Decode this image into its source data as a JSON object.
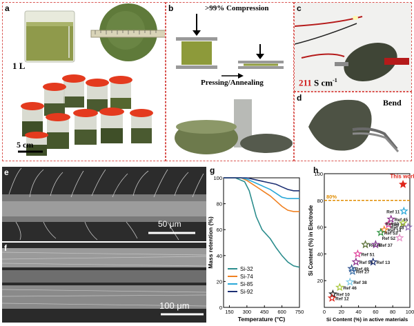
{
  "panels": {
    "a": {
      "label": "a",
      "volume": "1 L",
      "scale": "5 cm"
    },
    "b": {
      "label": "b",
      "title": ">99% Compression",
      "caption": "Pressing/Annealing"
    },
    "c": {
      "label": "c",
      "value": "211",
      "unit": "S cm",
      "exp": "-1"
    },
    "d": {
      "label": "d",
      "title": "Bend"
    },
    "e": {
      "label": "e",
      "scale": "50 μm"
    },
    "f": {
      "label": "f",
      "scale": "100 μm"
    },
    "g": {
      "label": "g"
    },
    "h": {
      "label": "h"
    }
  },
  "chart_data": [
    {
      "type": "line",
      "panel": "g",
      "xlabel": "Temperature (°C)",
      "ylabel": "Mass retention (%)",
      "xlim": [
        100,
        750
      ],
      "ylim": [
        0,
        100
      ],
      "xticks": [
        150,
        300,
        450,
        600,
        750
      ],
      "yticks": [
        0,
        20,
        40,
        60,
        80,
        100
      ],
      "legend_position": "bottom-left",
      "series": [
        {
          "name": "Si-32",
          "color": "#2a8c8c",
          "x": [
            100,
            200,
            280,
            320,
            350,
            380,
            430,
            500,
            550,
            600,
            650,
            700,
            750
          ],
          "y": [
            100,
            100,
            97,
            90,
            80,
            70,
            60,
            53,
            46,
            40,
            35,
            32,
            31
          ]
        },
        {
          "name": "Si-74",
          "color": "#f08020",
          "x": [
            100,
            250,
            300,
            350,
            400,
            450,
            500,
            550,
            600,
            650,
            700,
            750
          ],
          "y": [
            100,
            100,
            98,
            95,
            92,
            89,
            86,
            82,
            78,
            75,
            74,
            74
          ]
        },
        {
          "name": "Si-85",
          "color": "#29a8d8",
          "x": [
            100,
            250,
            300,
            350,
            400,
            450,
            500,
            550,
            600,
            650,
            700,
            750
          ],
          "y": [
            100,
            100,
            99,
            97,
            95,
            93,
            91,
            88,
            85,
            84,
            84,
            84
          ]
        },
        {
          "name": "Si-92",
          "color": "#1c2f73",
          "x": [
            100,
            300,
            400,
            500,
            550,
            600,
            650,
            700,
            750
          ],
          "y": [
            100,
            100,
            98,
            96,
            95,
            93,
            91,
            90,
            90
          ]
        }
      ]
    },
    {
      "type": "scatter",
      "panel": "h",
      "xlabel": "Si Content (%) in active materials",
      "ylabel": "Si Content (%) in Electrode",
      "xlim": [
        0,
        100
      ],
      "ylim": [
        0,
        100
      ],
      "xticks": [
        0,
        20,
        40,
        60,
        80,
        100
      ],
      "yticks": [
        20,
        40,
        60,
        80,
        100
      ],
      "reference_line": {
        "y": 80,
        "label": "80%",
        "color": "#e08c00"
      },
      "points": [
        {
          "label": "This work",
          "x": 92,
          "y": 92,
          "color": "#e0251b",
          "filled": true
        },
        {
          "label": "Ref 11",
          "x": 93,
          "y": 72,
          "color": "#29a8d8"
        },
        {
          "label": "Ref 45",
          "x": 78,
          "y": 66,
          "color": "#8b2d8b"
        },
        {
          "label": "Ref 26",
          "x": 75,
          "y": 62,
          "color": "#e0419a"
        },
        {
          "label": "Ref 30",
          "x": 92,
          "y": 63,
          "color": "#a8c63a"
        },
        {
          "label": "Ref 14",
          "x": 70,
          "y": 58,
          "color": "#f08020"
        },
        {
          "label": "Ref 53",
          "x": 66,
          "y": 56,
          "color": "#2a8f3c"
        },
        {
          "label": "Ref 48",
          "x": 98,
          "y": 60,
          "color": "#8c6bb1"
        },
        {
          "label": "Ref 52",
          "x": 88,
          "y": 52,
          "color": "#e58fc6"
        },
        {
          "label": "Ref 47",
          "x": 48,
          "y": 47,
          "color": "#556b2f"
        },
        {
          "label": "Ref 37",
          "x": 60,
          "y": 47,
          "color": "#7b2f8b"
        },
        {
          "label": "Ref 51",
          "x": 39,
          "y": 40,
          "color": "#e0419a"
        },
        {
          "label": "Ref 54",
          "x": 37,
          "y": 34,
          "color": "#8b2d8b"
        },
        {
          "label": "Ref 13",
          "x": 57,
          "y": 34,
          "color": "#1c2f73"
        },
        {
          "label": "Ref 49",
          "x": 32,
          "y": 29,
          "color": "#2e4d8c"
        },
        {
          "label": "Ref 27",
          "x": 33,
          "y": 27,
          "color": "#3a6ea5"
        },
        {
          "label": "Ref 38",
          "x": 30,
          "y": 19,
          "color": "#7fcbe8"
        },
        {
          "label": "Ref 46",
          "x": 18,
          "y": 15,
          "color": "#a8c63a"
        },
        {
          "label": "Ref 10",
          "x": 10,
          "y": 10,
          "color": "#1a1a1a"
        },
        {
          "label": "Ref 12",
          "x": 9,
          "y": 7,
          "color": "#e0251b"
        }
      ]
    }
  ]
}
